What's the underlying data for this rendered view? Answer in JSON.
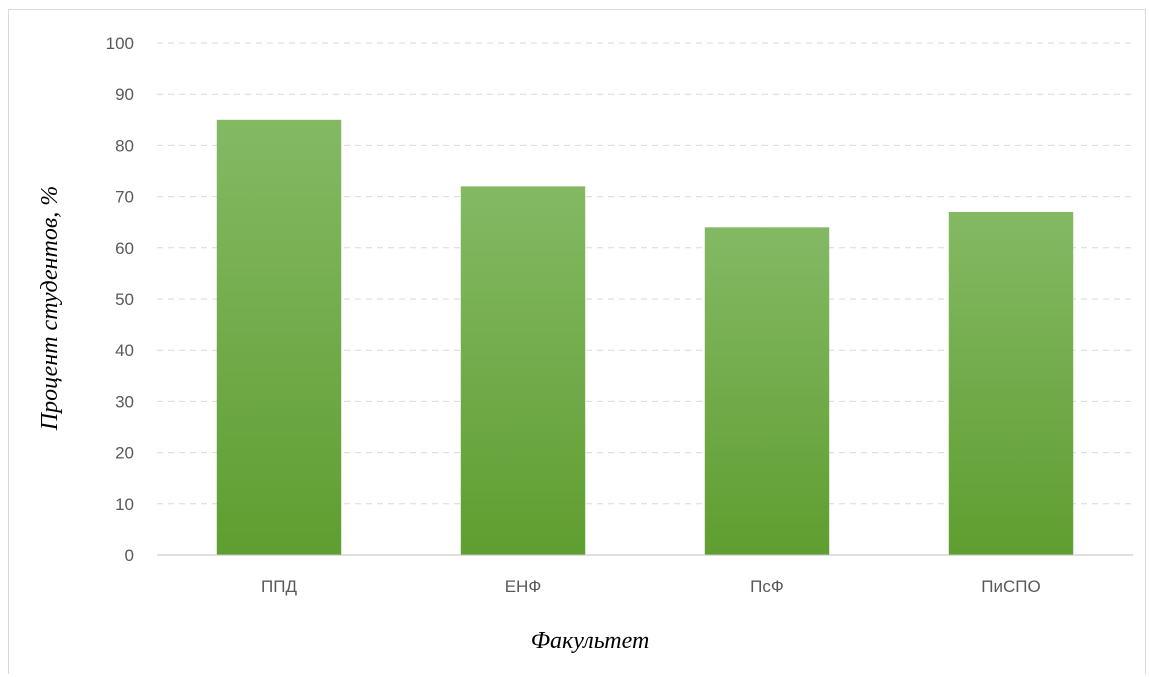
{
  "chart_data": {
    "type": "bar",
    "title": "",
    "xlabel": "Факультет",
    "ylabel": "Процент студентов, %",
    "categories": [
      "ППД",
      "ЕНФ",
      "ПсФ",
      "ПиСПО"
    ],
    "values": [
      85,
      72,
      64,
      67
    ],
    "ylim": [
      0,
      100
    ],
    "yticks": [
      0,
      10,
      20,
      30,
      40,
      50,
      60,
      70,
      80,
      90,
      100
    ],
    "grid": true,
    "legend": "none",
    "colors": {
      "bar_top": "#84b964",
      "bar_bottom": "#5f9e30",
      "grid": "#d9d9d9",
      "axis": "#bfbfbf"
    }
  }
}
